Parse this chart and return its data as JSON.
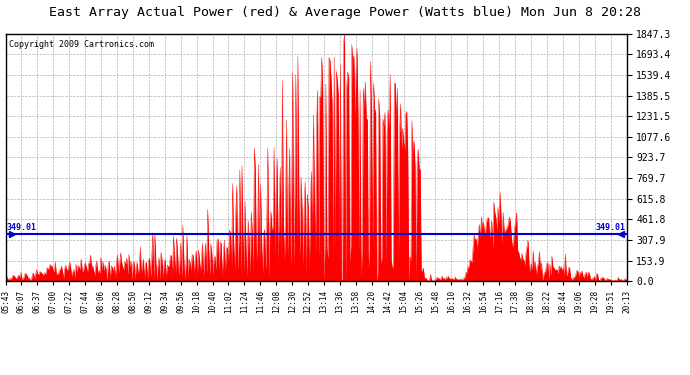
{
  "title": "East Array Actual Power (red) & Average Power (Watts blue) Mon Jun 8 20:28",
  "copyright": "Copyright 2009 Cartronics.com",
  "y_max": 1847.3,
  "y_min": 0.0,
  "yticks": [
    0.0,
    153.9,
    307.9,
    461.8,
    615.8,
    769.7,
    923.7,
    1077.6,
    1231.5,
    1385.5,
    1539.4,
    1693.4,
    1847.3
  ],
  "avg_line_y": 349.01,
  "avg_label": "349.01",
  "fill_color": "#ff0000",
  "line_color": "#0000cc",
  "background_color": "#ffffff",
  "grid_color": "#aaaaaa",
  "xtick_labels": [
    "05:43",
    "06:07",
    "06:37",
    "07:00",
    "07:22",
    "07:44",
    "08:06",
    "08:28",
    "08:50",
    "09:12",
    "09:34",
    "09:56",
    "10:18",
    "10:40",
    "11:02",
    "11:24",
    "11:46",
    "12:08",
    "12:30",
    "12:52",
    "13:14",
    "13:36",
    "13:58",
    "14:20",
    "14:42",
    "15:04",
    "15:26",
    "15:48",
    "16:10",
    "16:32",
    "16:54",
    "17:16",
    "17:38",
    "18:00",
    "18:22",
    "18:44",
    "19:06",
    "19:28",
    "19:51",
    "20:13"
  ]
}
